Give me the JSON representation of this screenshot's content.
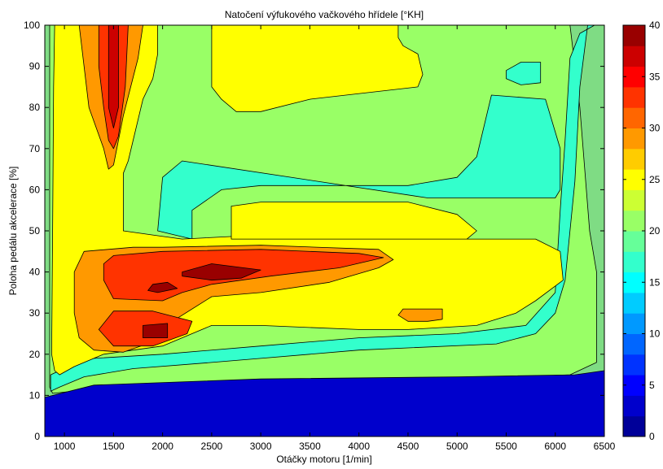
{
  "chart_data": {
    "type": "contour",
    "title": "Natočení výfukového vačkového hřídele [°KH]",
    "xlabel": "Otáčky motoru [1/min]",
    "ylabel": "Poloha pedálu akcelerace [%]",
    "xlim": [
      800,
      6500
    ],
    "ylim": [
      0,
      100
    ],
    "xticks": [
      1000,
      1500,
      2000,
      2500,
      3000,
      3500,
      4000,
      4500,
      5000,
      5500,
      6000,
      6500
    ],
    "yticks": [
      0,
      10,
      20,
      30,
      40,
      50,
      60,
      70,
      80,
      90,
      100
    ],
    "colorbar": {
      "range": [
        0,
        40
      ],
      "ticks": [
        0,
        5,
        10,
        15,
        20,
        25,
        30,
        35,
        40
      ],
      "levels": 20
    },
    "regions": [
      {
        "value": 21,
        "points": [
          [
            850,
            100
          ],
          [
            6150,
            100
          ],
          [
            6250,
            80
          ],
          [
            6350,
            50
          ],
          [
            6420,
            40
          ],
          [
            6420,
            18
          ],
          [
            6150,
            15
          ],
          [
            5000,
            14
          ],
          [
            3000,
            13
          ],
          [
            1500,
            12
          ],
          [
            880,
            10.5
          ],
          [
            850,
            12
          ]
        ]
      },
      {
        "value": 16,
        "points": [
          [
            5650,
            91
          ],
          [
            5850,
            91
          ],
          [
            5850,
            86
          ],
          [
            5650,
            85.5
          ],
          [
            5500,
            87
          ],
          [
            5500,
            89
          ]
        ]
      },
      {
        "value": 16,
        "points": [
          [
            5350,
            83
          ],
          [
            5900,
            82
          ],
          [
            6050,
            70
          ],
          [
            6050,
            60
          ],
          [
            6000,
            58
          ],
          [
            4700,
            58
          ],
          [
            2200,
            67
          ],
          [
            2000,
            63
          ],
          [
            1950,
            50
          ],
          [
            2300,
            48
          ],
          [
            2300,
            55
          ],
          [
            2600,
            60
          ],
          [
            3000,
            61
          ],
          [
            4500,
            61
          ],
          [
            5000,
            63
          ],
          [
            5200,
            68
          ]
        ]
      },
      {
        "value": 16,
        "points": [
          [
            6400,
            100
          ],
          [
            6330,
            100
          ],
          [
            6250,
            85
          ],
          [
            6200,
            62
          ],
          [
            6150,
            50
          ],
          [
            6100,
            38
          ],
          [
            6000,
            30
          ],
          [
            5800,
            25
          ],
          [
            5400,
            22.5
          ],
          [
            4000,
            21
          ],
          [
            3000,
            19
          ],
          [
            2500,
            18
          ],
          [
            1700,
            16.5
          ],
          [
            1200,
            14.5
          ],
          [
            950,
            12
          ],
          [
            860,
            11
          ],
          [
            860,
            15
          ],
          [
            950,
            16
          ],
          [
            1300,
            19
          ],
          [
            2000,
            20
          ],
          [
            3000,
            22
          ],
          [
            4000,
            24
          ],
          [
            5000,
            25
          ],
          [
            5700,
            27
          ],
          [
            6000,
            35
          ],
          [
            6050,
            55
          ],
          [
            6100,
            72
          ],
          [
            6150,
            92
          ],
          [
            6250,
            98
          ]
        ]
      },
      {
        "value": 25,
        "points": [
          [
            1000,
            100
          ],
          [
            1950,
            100
          ],
          [
            1950,
            93
          ],
          [
            1900,
            87
          ],
          [
            1800,
            82
          ],
          [
            1650,
            67
          ],
          [
            1600,
            64
          ],
          [
            1600,
            50
          ],
          [
            1900,
            49
          ],
          [
            2200,
            48
          ],
          [
            3000,
            49
          ],
          [
            4200,
            48
          ],
          [
            4700,
            48
          ],
          [
            5200,
            48
          ],
          [
            5800,
            48
          ],
          [
            6050,
            45
          ],
          [
            6080,
            38
          ],
          [
            5800,
            33
          ],
          [
            5600,
            30
          ],
          [
            5200,
            27
          ],
          [
            4500,
            26
          ],
          [
            4000,
            26
          ],
          [
            3000,
            27
          ],
          [
            2500,
            27
          ],
          [
            2000,
            22
          ],
          [
            1400,
            20
          ],
          [
            1100,
            17
          ],
          [
            950,
            15
          ],
          [
            900,
            16
          ],
          [
            870,
            20
          ],
          [
            880,
            50
          ],
          [
            890,
            85
          ],
          [
            900,
            100
          ]
        ]
      },
      {
        "value": 25,
        "points": [
          [
            2500,
            100
          ],
          [
            4400,
            100
          ],
          [
            4400,
            97
          ],
          [
            4450,
            95
          ],
          [
            4600,
            93
          ],
          [
            4650,
            88
          ],
          [
            4600,
            85
          ],
          [
            3500,
            82
          ],
          [
            3000,
            79
          ],
          [
            2750,
            79
          ],
          [
            2600,
            82
          ],
          [
            2500,
            85
          ],
          [
            2500,
            93
          ]
        ]
      },
      {
        "value": 25,
        "points": [
          [
            2700,
            56
          ],
          [
            3000,
            57
          ],
          [
            4500,
            57
          ],
          [
            5000,
            54
          ],
          [
            5200,
            50
          ],
          [
            5100,
            48
          ],
          [
            2700,
            48
          ]
        ]
      },
      {
        "value": 29,
        "points": [
          [
            1100,
            100
          ],
          [
            1800,
            100
          ],
          [
            1750,
            92
          ],
          [
            1600,
            78
          ],
          [
            1500,
            66
          ],
          [
            1450,
            65
          ],
          [
            1400,
            70
          ],
          [
            1250,
            80
          ],
          [
            1200,
            90
          ],
          [
            1150,
            100
          ]
        ]
      },
      {
        "value": 29,
        "points": [
          [
            1200,
            45
          ],
          [
            1700,
            46
          ],
          [
            2000,
            46
          ],
          [
            3000,
            46.5
          ],
          [
            4200,
            45.5
          ],
          [
            4350,
            43
          ],
          [
            4200,
            41
          ],
          [
            3700,
            37.5
          ],
          [
            3000,
            35
          ],
          [
            2500,
            34
          ],
          [
            2100,
            28
          ],
          [
            1900,
            23
          ],
          [
            1600,
            20.5
          ],
          [
            1300,
            21
          ],
          [
            1150,
            24
          ],
          [
            1100,
            30
          ],
          [
            1100,
            40
          ]
        ]
      },
      {
        "value": 29,
        "points": [
          [
            4450,
            31
          ],
          [
            4850,
            31
          ],
          [
            4850,
            28.5
          ],
          [
            4700,
            28
          ],
          [
            4500,
            28
          ],
          [
            4400,
            29.5
          ]
        ]
      },
      {
        "value": 33,
        "points": [
          [
            1350,
            100
          ],
          [
            1650,
            100
          ],
          [
            1620,
            85
          ],
          [
            1550,
            73
          ],
          [
            1500,
            70
          ],
          [
            1450,
            72
          ],
          [
            1400,
            80
          ],
          [
            1350,
            90
          ]
        ]
      },
      {
        "value": 33,
        "points": [
          [
            1500,
            44
          ],
          [
            2000,
            45
          ],
          [
            3000,
            45.5
          ],
          [
            4000,
            44.5
          ],
          [
            4250,
            43.5
          ],
          [
            3800,
            41
          ],
          [
            3100,
            39
          ],
          [
            2500,
            37
          ],
          [
            2200,
            35
          ],
          [
            2000,
            33
          ],
          [
            1500,
            33.5
          ],
          [
            1400,
            38
          ],
          [
            1400,
            42
          ]
        ]
      },
      {
        "value": 33,
        "points": [
          [
            1500,
            30.5
          ],
          [
            1900,
            30.5
          ],
          [
            2300,
            28
          ],
          [
            2250,
            25
          ],
          [
            1900,
            22
          ],
          [
            1500,
            22
          ],
          [
            1350,
            26
          ]
        ]
      },
      {
        "value": 37,
        "points": [
          [
            1450,
            100
          ],
          [
            1550,
            100
          ],
          [
            1550,
            80
          ],
          [
            1500,
            75
          ],
          [
            1450,
            80
          ]
        ]
      },
      {
        "value": 39,
        "points": [
          [
            2200,
            40
          ],
          [
            2500,
            42
          ],
          [
            3000,
            40.5
          ],
          [
            2800,
            38.5
          ],
          [
            2500,
            38
          ],
          [
            2200,
            39
          ]
        ]
      },
      {
        "value": 39,
        "points": [
          [
            1900,
            37
          ],
          [
            2050,
            37.5
          ],
          [
            2150,
            36
          ],
          [
            1950,
            35
          ],
          [
            1850,
            35.5
          ]
        ]
      },
      {
        "value": 39,
        "points": [
          [
            1800,
            27
          ],
          [
            2050,
            27.5
          ],
          [
            2050,
            24
          ],
          [
            1800,
            24
          ]
        ]
      },
      {
        "value": 2,
        "points": [
          [
            800,
            9.5
          ],
          [
            1300,
            12.5
          ],
          [
            3000,
            14
          ],
          [
            5000,
            14.5
          ],
          [
            6200,
            15
          ],
          [
            6500,
            16
          ],
          [
            6500,
            0
          ],
          [
            800,
            0
          ]
        ]
      }
    ]
  }
}
